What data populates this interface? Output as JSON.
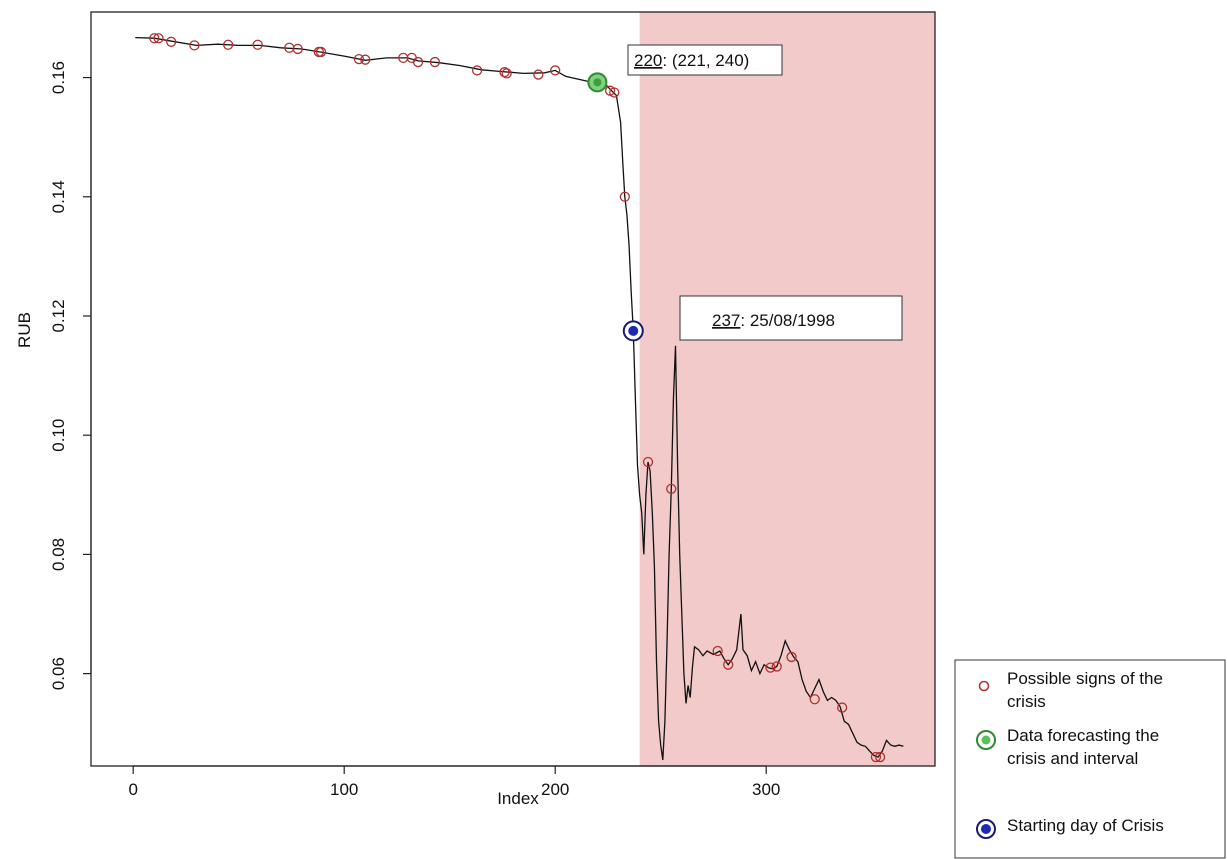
{
  "chart_data": {
    "type": "line",
    "xlabel": "Index",
    "ylabel": "RUB",
    "xlim": [
      -20,
      380
    ],
    "ylim": [
      0.0445,
      0.171
    ],
    "x_ticks": [
      0,
      100,
      200,
      300
    ],
    "y_ticks": [
      0.06,
      0.08,
      0.1,
      0.12,
      0.14,
      0.16
    ],
    "y_tick_labels": [
      "0.06",
      "0.08",
      "0.10",
      "0.12",
      "0.14",
      "0.16"
    ],
    "grid": false,
    "shaded_region": {
      "x_start": 240,
      "x_end": 380,
      "color": "#f2caca"
    },
    "series": [
      {
        "type": "line",
        "color": "#111111",
        "points": [
          [
            1,
            0.1667
          ],
          [
            10,
            0.1666
          ],
          [
            20,
            0.166
          ],
          [
            30,
            0.1654
          ],
          [
            40,
            0.1656
          ],
          [
            50,
            0.1654
          ],
          [
            60,
            0.1654
          ],
          [
            70,
            0.165
          ],
          [
            80,
            0.1648
          ],
          [
            90,
            0.1642
          ],
          [
            100,
            0.1636
          ],
          [
            110,
            0.1629
          ],
          [
            120,
            0.1633
          ],
          [
            130,
            0.1633
          ],
          [
            135,
            0.1628
          ],
          [
            145,
            0.1625
          ],
          [
            155,
            0.162
          ],
          [
            165,
            0.1613
          ],
          [
            175,
            0.161
          ],
          [
            185,
            0.1607
          ],
          [
            195,
            0.1608
          ],
          [
            200,
            0.1612
          ],
          [
            205,
            0.1602
          ],
          [
            210,
            0.1598
          ],
          [
            215,
            0.1594
          ],
          [
            220,
            0.1592
          ],
          [
            224,
            0.1588
          ],
          [
            227,
            0.1577
          ],
          [
            229,
            0.157
          ],
          [
            231,
            0.1525
          ],
          [
            232,
            0.146
          ],
          [
            233,
            0.14
          ],
          [
            234,
            0.137
          ],
          [
            235,
            0.132
          ],
          [
            236,
            0.124
          ],
          [
            237,
            0.1175
          ],
          [
            238,
            0.106
          ],
          [
            239,
            0.095
          ],
          [
            240,
            0.09
          ],
          [
            241,
            0.087
          ],
          [
            242,
            0.08
          ],
          [
            243,
            0.09
          ],
          [
            244,
            0.0955
          ],
          [
            245,
            0.094
          ],
          [
            246,
            0.087
          ],
          [
            247,
            0.078
          ],
          [
            248,
            0.062
          ],
          [
            249,
            0.052
          ],
          [
            250,
            0.048
          ],
          [
            251,
            0.0455
          ],
          [
            252,
            0.052
          ],
          [
            253,
            0.065
          ],
          [
            254,
            0.08
          ],
          [
            255,
            0.091
          ],
          [
            256,
            0.106
          ],
          [
            257,
            0.115
          ],
          [
            258,
            0.095
          ],
          [
            259,
            0.08
          ],
          [
            260,
            0.07
          ],
          [
            261,
            0.06
          ],
          [
            262,
            0.055
          ],
          [
            263,
            0.058
          ],
          [
            264,
            0.056
          ],
          [
            265,
            0.061
          ],
          [
            266,
            0.0645
          ],
          [
            268,
            0.064
          ],
          [
            270,
            0.063
          ],
          [
            272,
            0.0638
          ],
          [
            275,
            0.0632
          ],
          [
            278,
            0.0638
          ],
          [
            280,
            0.0625
          ],
          [
            282,
            0.0615
          ],
          [
            284,
            0.0625
          ],
          [
            286,
            0.064
          ],
          [
            288,
            0.07
          ],
          [
            289,
            0.064
          ],
          [
            291,
            0.063
          ],
          [
            293,
            0.0605
          ],
          [
            295,
            0.062
          ],
          [
            297,
            0.06
          ],
          [
            299,
            0.0615
          ],
          [
            301,
            0.061
          ],
          [
            303,
            0.0608
          ],
          [
            305,
            0.0612
          ],
          [
            307,
            0.063
          ],
          [
            309,
            0.0655
          ],
          [
            311,
            0.064
          ],
          [
            313,
            0.0628
          ],
          [
            315,
            0.062
          ],
          [
            317,
            0.059
          ],
          [
            319,
            0.057
          ],
          [
            321,
            0.056
          ],
          [
            323,
            0.0575
          ],
          [
            325,
            0.059
          ],
          [
            327,
            0.057
          ],
          [
            329,
            0.0555
          ],
          [
            331,
            0.056
          ],
          [
            333,
            0.0555
          ],
          [
            335,
            0.0545
          ],
          [
            337,
            0.052
          ],
          [
            339,
            0.0515
          ],
          [
            341,
            0.05
          ],
          [
            343,
            0.0485
          ],
          [
            345,
            0.048
          ],
          [
            347,
            0.0478
          ],
          [
            349,
            0.047
          ],
          [
            351,
            0.0463
          ],
          [
            353,
            0.046
          ],
          [
            355,
            0.047
          ],
          [
            357,
            0.0488
          ],
          [
            359,
            0.048
          ],
          [
            361,
            0.0478
          ],
          [
            363,
            0.048
          ],
          [
            365,
            0.0478
          ]
        ]
      }
    ],
    "possible_signs": [
      [
        10,
        0.1666
      ],
      [
        12,
        0.1666
      ],
      [
        18,
        0.166
      ],
      [
        29,
        0.1654
      ],
      [
        45,
        0.1655
      ],
      [
        59,
        0.1655
      ],
      [
        74,
        0.165
      ],
      [
        78,
        0.1648
      ],
      [
        88,
        0.1643
      ],
      [
        89,
        0.1643
      ],
      [
        107,
        0.1631
      ],
      [
        110,
        0.163
      ],
      [
        128,
        0.1633
      ],
      [
        132,
        0.1633
      ],
      [
        135,
        0.1626
      ],
      [
        143,
        0.1626
      ],
      [
        163,
        0.1612
      ],
      [
        176,
        0.1609
      ],
      [
        177,
        0.1607
      ],
      [
        192,
        0.1605
      ],
      [
        200,
        0.1612
      ],
      [
        226,
        0.1578
      ],
      [
        228,
        0.1575
      ],
      [
        233,
        0.14
      ],
      [
        244,
        0.0955
      ],
      [
        255,
        0.091
      ],
      [
        277,
        0.0638
      ],
      [
        282,
        0.0615
      ],
      [
        302,
        0.061
      ],
      [
        305,
        0.0612
      ],
      [
        312,
        0.0628
      ],
      [
        323,
        0.0557
      ],
      [
        336,
        0.0543
      ],
      [
        352,
        0.046
      ],
      [
        354,
        0.046
      ]
    ],
    "forecast_point": [
      220,
      0.1592
    ],
    "crisis_start_point": [
      237,
      0.1175
    ],
    "annotations": [
      {
        "id": "forecast",
        "index_text": "220",
        "rest_text": ": (221, 240)"
      },
      {
        "id": "crisis",
        "index_text": "237",
        "rest_text": ": 25/08/1998"
      }
    ],
    "legend": {
      "position": "bottom-right",
      "items": [
        {
          "lines": [
            "Possible signs of the",
            "crisis"
          ],
          "marker": "small-red-circle"
        },
        {
          "lines": [
            "Data forecasting the",
            "crisis and interval"
          ],
          "marker": "green-circle"
        },
        {
          "lines": [
            "Starting day of Crisis"
          ],
          "marker": "blue-circle"
        }
      ]
    }
  }
}
